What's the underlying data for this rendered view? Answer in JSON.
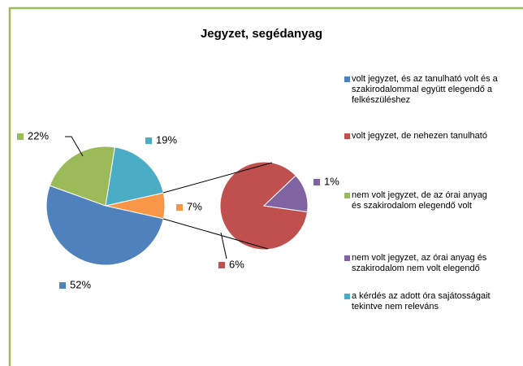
{
  "chart_data": {
    "type": "pie-of-pie",
    "title": "Jegyzet, segédanyag",
    "series": [
      {
        "name": "volt jegyzet, és az tanulható volt és a szakirodalommal együtt elegendő a felkészüléshez",
        "color": "#4f81bd",
        "value": 52,
        "value_label": "52%"
      },
      {
        "name": "volt jegyzet, de nehezen tanulható",
        "color": "#c0504d",
        "value": 6,
        "value_label": "6%"
      },
      {
        "name": "nem volt jegyzet, de az órai anyag és szakirodalom elegendő volt",
        "color": "#9bbb59",
        "value": 22,
        "value_label": "22%"
      },
      {
        "name": "nem volt jegyzet, az órai anyag és szakirodalom nem volt elegendő",
        "color": "#8064a2",
        "value": 1,
        "value_label": "1%"
      },
      {
        "name": "a kérdés az adott óra sajátosságait tekintve nem releváns",
        "color": "#4bacc6",
        "value": 19,
        "value_label": "19%"
      }
    ],
    "other_value": 7,
    "other_value_label": "7%",
    "other_color": "#f79646",
    "border_color": "#9bbb59",
    "legend": "right"
  }
}
